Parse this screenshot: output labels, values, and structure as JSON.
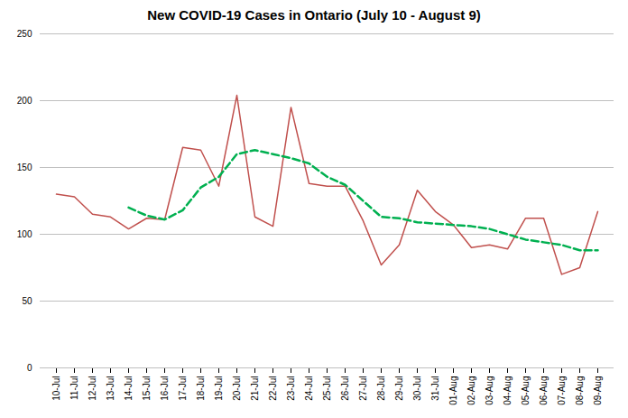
{
  "chart_data": {
    "type": "line",
    "title": "New COVID-19 Cases in Ontario (July 10 - August 9)",
    "categories": [
      "10-Jul",
      "11-Jul",
      "12-Jul",
      "13-Jul",
      "14-Jul",
      "15-Jul",
      "16-Jul",
      "17-Jul",
      "18-Jul",
      "19-Jul",
      "20-Jul",
      "21-Jul",
      "22-Jul",
      "23-Jul",
      "24-Jul",
      "25-Jul",
      "26-Jul",
      "27-Jul",
      "28-Jul",
      "29-Jul",
      "30-Jul",
      "31-Jul",
      "01-Aug",
      "02-Aug",
      "03-Aug",
      "04-Aug",
      "05-Aug",
      "06-Aug",
      "07-Aug",
      "08-Aug",
      "09-Aug"
    ],
    "series": [
      {
        "color": "#c0504d",
        "line_style": "solid",
        "values": [
          130,
          128,
          115,
          113,
          104,
          112,
          111,
          165,
          163,
          136,
          204,
          113,
          106,
          195,
          138,
          136,
          136,
          110,
          77,
          92,
          133,
          117,
          107,
          90,
          92,
          89,
          112,
          112,
          70,
          75,
          117
        ]
      },
      {
        "color": "#00b050",
        "line_style": "dashed",
        "values": [
          null,
          null,
          null,
          null,
          120,
          114,
          111,
          118,
          135,
          143,
          160,
          163,
          160,
          157,
          153,
          143,
          137,
          125,
          113,
          112,
          109,
          108,
          107,
          106,
          104,
          100,
          96,
          94,
          92,
          88,
          88
        ]
      }
    ],
    "ylim": [
      0,
      250
    ],
    "yticks": [
      0,
      50,
      100,
      150,
      200,
      250
    ],
    "grid": "y"
  }
}
